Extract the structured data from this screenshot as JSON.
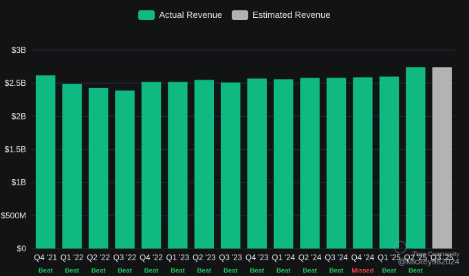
{
  "legend": {
    "actual_label": "Actual Revenue",
    "estimated_label": "Estimated Revenue"
  },
  "colors": {
    "actual": "#10b981",
    "estimated": "#b3b3b3",
    "beat": "#22c55e",
    "missed": "#ef4444",
    "grid": "#2a2d31",
    "text": "#e6e6e6"
  },
  "watermark": {
    "community": "Tiger Community",
    "handle": "@Mickey082024"
  },
  "chart_data": {
    "type": "bar",
    "categories": [
      "Q4 '21",
      "Q1 '22",
      "Q2 '22",
      "Q3 '22",
      "Q4 '22",
      "Q1 '23",
      "Q2 '23",
      "Q3 '23",
      "Q4 '23",
      "Q1 '24",
      "Q2 '24",
      "Q3 '24",
      "Q4 '24",
      "Q1 '25",
      "Q2 '25",
      "Q3 '25"
    ],
    "series": [
      {
        "name": "Actual Revenue",
        "values": [
          2.62,
          2.49,
          2.43,
          2.39,
          2.52,
          2.52,
          2.55,
          2.51,
          2.57,
          2.56,
          2.58,
          2.58,
          2.59,
          2.6,
          2.74,
          null
        ]
      },
      {
        "name": "Estimated Revenue",
        "values": [
          null,
          null,
          null,
          null,
          null,
          null,
          null,
          null,
          null,
          null,
          null,
          null,
          null,
          null,
          null,
          2.74
        ]
      }
    ],
    "results": [
      "Beat",
      "Beat",
      "Beat",
      "Beat",
      "Beat",
      "Beat",
      "Beat",
      "Beat",
      "Beat",
      "Beat",
      "Beat",
      "Beat",
      "Missed",
      "Beat",
      "Beat",
      ""
    ],
    "y_ticks": [
      0,
      0.5,
      1,
      1.5,
      2,
      2.5,
      3
    ],
    "y_tick_labels": [
      "$0",
      "$500M",
      "$1B",
      "$1.5B",
      "$2B",
      "$2.5B",
      "$3B"
    ],
    "ylim": [
      0,
      3
    ],
    "grid": true,
    "legend_position": "top-center"
  }
}
